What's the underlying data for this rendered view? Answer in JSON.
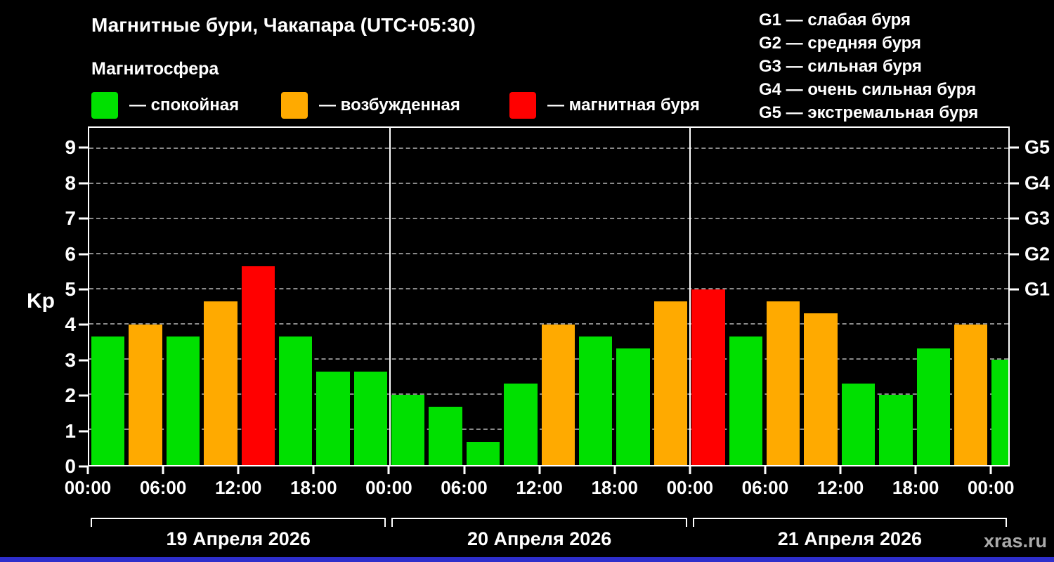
{
  "title": "Магнитные бури, Чакапара (UTC+05:30)",
  "subtitle": "Магнитосфера",
  "legend": {
    "items": [
      {
        "level": "quiet",
        "label": "— спокойная"
      },
      {
        "level": "excited",
        "label": "— возбужденная"
      },
      {
        "level": "storm",
        "label": "— магнитная буря"
      }
    ]
  },
  "g_legend": [
    "G1 — слабая буря",
    "G2 — средняя буря",
    "G3 — сильная буря",
    "G4 — очень сильная буря",
    "G5 — экстремальная буря"
  ],
  "watermark": "xras.ru",
  "colors": {
    "quiet": "#00e000",
    "excited": "#ffaa00",
    "storm": "#ff0000",
    "strip": "#2e2ecc"
  },
  "chart_data": {
    "type": "bar",
    "title": "Магнитные бури, Чакапара (UTC+05:30)",
    "ylabel": "Kp",
    "ylim": [
      0,
      9.6
    ],
    "yticks": [
      0,
      1,
      2,
      3,
      4,
      5,
      6,
      7,
      8,
      9
    ],
    "right_axis": [
      {
        "kp": 5,
        "label": "G1"
      },
      {
        "kp": 6,
        "label": "G2"
      },
      {
        "kp": 7,
        "label": "G3"
      },
      {
        "kp": 8,
        "label": "G4"
      },
      {
        "kp": 9,
        "label": "G5"
      }
    ],
    "x_span": 73.5,
    "xticks": [
      {
        "hour": 0,
        "label": "00:00"
      },
      {
        "hour": 6,
        "label": "06:00"
      },
      {
        "hour": 12,
        "label": "12:00"
      },
      {
        "hour": 18,
        "label": "18:00"
      },
      {
        "hour": 24,
        "label": "00:00"
      },
      {
        "hour": 30,
        "label": "06:00"
      },
      {
        "hour": 36,
        "label": "12:00"
      },
      {
        "hour": 42,
        "label": "18:00"
      },
      {
        "hour": 48,
        "label": "00:00"
      },
      {
        "hour": 54,
        "label": "06:00"
      },
      {
        "hour": 60,
        "label": "12:00"
      },
      {
        "hour": 66,
        "label": "18:00"
      },
      {
        "hour": 72,
        "label": "00:00"
      }
    ],
    "day_dividers": [
      24,
      48
    ],
    "days": [
      "19 Апреля 2026",
      "20 Апреля 2026",
      "21 Апреля 2026"
    ],
    "bars": [
      {
        "hour": 0,
        "kp": 3.67,
        "level": "quiet"
      },
      {
        "hour": 3,
        "kp": 4,
        "level": "excited"
      },
      {
        "hour": 6,
        "kp": 3.67,
        "level": "quiet"
      },
      {
        "hour": 9,
        "kp": 4.67,
        "level": "excited"
      },
      {
        "hour": 12,
        "kp": 5.67,
        "level": "storm"
      },
      {
        "hour": 15,
        "kp": 3.67,
        "level": "quiet"
      },
      {
        "hour": 18,
        "kp": 2.67,
        "level": "quiet"
      },
      {
        "hour": 21,
        "kp": 2.67,
        "level": "quiet"
      },
      {
        "hour": 24,
        "kp": 2,
        "level": "quiet"
      },
      {
        "hour": 27,
        "kp": 1.67,
        "level": "quiet"
      },
      {
        "hour": 30,
        "kp": 0.67,
        "level": "quiet"
      },
      {
        "hour": 33,
        "kp": 2.33,
        "level": "quiet"
      },
      {
        "hour": 36,
        "kp": 4,
        "level": "excited"
      },
      {
        "hour": 39,
        "kp": 3.67,
        "level": "quiet"
      },
      {
        "hour": 42,
        "kp": 3.33,
        "level": "quiet"
      },
      {
        "hour": 45,
        "kp": 4.67,
        "level": "excited"
      },
      {
        "hour": 48,
        "kp": 5,
        "level": "storm"
      },
      {
        "hour": 51,
        "kp": 3.67,
        "level": "quiet"
      },
      {
        "hour": 54,
        "kp": 4.67,
        "level": "excited"
      },
      {
        "hour": 57,
        "kp": 4.33,
        "level": "excited"
      },
      {
        "hour": 60,
        "kp": 2.33,
        "level": "quiet"
      },
      {
        "hour": 63,
        "kp": 2,
        "level": "quiet"
      },
      {
        "hour": 66,
        "kp": 3.33,
        "level": "quiet"
      },
      {
        "hour": 69,
        "kp": 4,
        "level": "excited"
      },
      {
        "hour": 72,
        "kp": 3,
        "level": "quiet"
      }
    ]
  }
}
